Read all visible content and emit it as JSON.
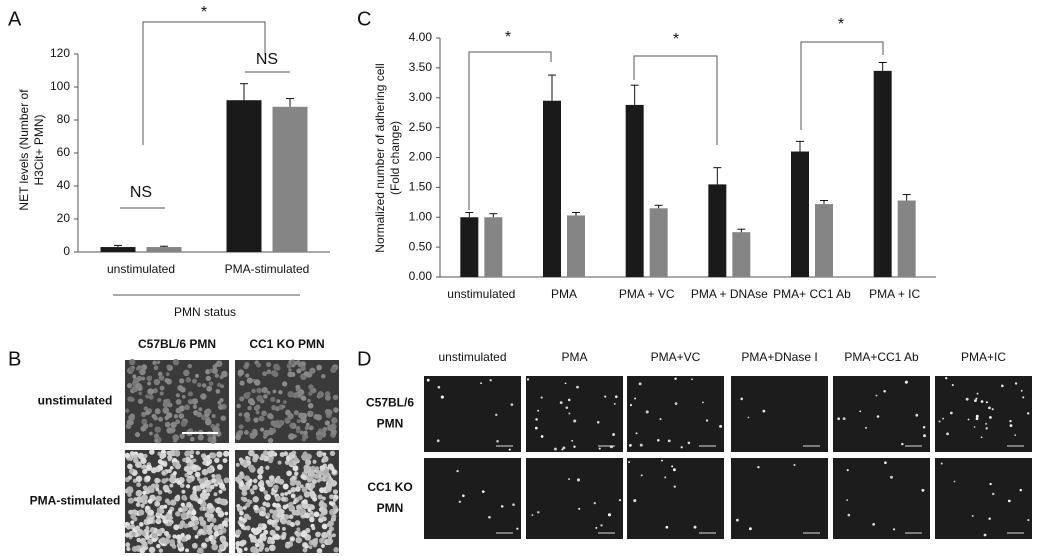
{
  "chart_data": [
    {
      "type": "bar",
      "panel_label": "A",
      "y_label": [
        "NET levels (Number of",
        "H3Cit+ PMN)"
      ],
      "x_label": "PMN status",
      "categories": [
        "unstimulated",
        "PMA-stimulated"
      ],
      "series": [
        {
          "color": "#1a1a1a",
          "values": [
            3,
            92
          ],
          "errors": [
            1,
            10
          ]
        },
        {
          "color": "#858585",
          "values": [
            3,
            88
          ],
          "errors": [
            0.5,
            5
          ]
        }
      ],
      "ylim": [
        0,
        120
      ],
      "yticks": [
        0,
        20,
        40,
        60,
        80,
        100,
        120
      ],
      "annotations": [
        "*",
        "NS",
        "NS"
      ]
    },
    {
      "type": "bar",
      "panel_label": "C",
      "y_label": [
        "Normalized number of adhering cell",
        "(Fold change)"
      ],
      "categories": [
        "unstimulated",
        "PMA",
        "PMA + VC",
        "PMA + DNAse",
        "PMA+ CC1 Ab",
        "PMA + IC"
      ],
      "series": [
        {
          "color": "#1a1a1a",
          "values": [
            1.0,
            2.95,
            2.88,
            1.55,
            2.1,
            3.45
          ],
          "errors": [
            0.08,
            0.43,
            0.33,
            0.28,
            0.17,
            0.14
          ]
        },
        {
          "color": "#858585",
          "values": [
            1.0,
            1.03,
            1.15,
            0.75,
            1.22,
            1.28
          ],
          "errors": [
            0.06,
            0.05,
            0.05,
            0.05,
            0.06,
            0.1
          ]
        }
      ],
      "ylim": [
        0,
        4
      ],
      "yticks": [
        {
          "value": 0,
          "label": "0.00"
        },
        {
          "value": 0.5,
          "label": "0.50"
        },
        {
          "value": 1,
          "label": "1.00"
        },
        {
          "value": 1.5,
          "label": "1.50"
        },
        {
          "value": 2,
          "label": "2.00"
        },
        {
          "value": 2.5,
          "label": "2.50"
        },
        {
          "value": 3,
          "label": "3.00"
        },
        {
          "value": 3.5,
          "label": "3.50"
        },
        {
          "value": 4,
          "label": "4.00"
        }
      ],
      "annotations": [
        "*",
        "*",
        "*"
      ]
    }
  ],
  "image_panels": [
    {
      "panel_label": "B",
      "columns": [
        "C57BL/6 PMN",
        "CC1 KO PMN"
      ],
      "rows": [
        [
          "unstimulated"
        ],
        [
          "PMA-stimulated"
        ]
      ]
    },
    {
      "panel_label": "D",
      "columns": [
        "unstimulated",
        "PMA",
        "PMA+VC",
        "PMA+DNase I",
        "PMA+CC1 Ab",
        "PMA+IC"
      ],
      "rows": [
        [
          "C57BL/6",
          "PMN"
        ],
        [
          "CC1 KO",
          "PMN"
        ]
      ]
    }
  ]
}
